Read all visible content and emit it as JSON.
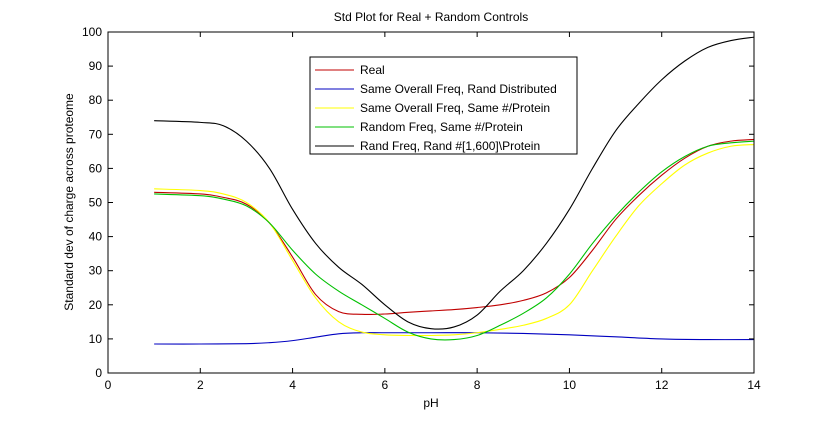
{
  "chart_data": {
    "type": "line",
    "title": "Std Plot for Real + Random Controls",
    "xlabel": "pH",
    "ylabel": "Standard dev of charge across proteome",
    "xlim": [
      0,
      14
    ],
    "ylim": [
      0,
      100
    ],
    "xticks": [
      0,
      2,
      4,
      6,
      8,
      10,
      12,
      14
    ],
    "yticks": [
      0,
      10,
      20,
      30,
      40,
      50,
      60,
      70,
      80,
      90,
      100
    ],
    "grid": false,
    "legend_position": "top-center",
    "series": [
      {
        "name": "Real",
        "color": "#c00000",
        "x": [
          1,
          2,
          2.5,
          3,
          3.5,
          4,
          4.5,
          5,
          5.5,
          6,
          6.5,
          7,
          7.5,
          8,
          8.5,
          9,
          9.5,
          10,
          10.5,
          11,
          11.5,
          12,
          12.5,
          13,
          13.5,
          14
        ],
        "y": [
          53,
          52.5,
          51.5,
          49.5,
          44,
          34,
          23,
          18,
          17.2,
          17.3,
          17.8,
          18.2,
          18.6,
          19.2,
          20,
          21.3,
          23.5,
          28,
          36,
          45,
          52,
          58,
          63,
          66.5,
          68,
          68.5
        ]
      },
      {
        "name": "Same Overall Freq, Rand Distributed",
        "color": "#0000c0",
        "x": [
          1,
          2,
          3,
          3.5,
          4,
          4.5,
          5,
          5.5,
          6,
          7,
          8,
          9,
          10,
          11,
          12,
          13,
          14
        ],
        "y": [
          8.5,
          8.5,
          8.6,
          8.9,
          9.5,
          10.5,
          11.5,
          11.8,
          11.8,
          11.8,
          11.8,
          11.6,
          11.2,
          10.6,
          10,
          9.8,
          9.8
        ]
      },
      {
        "name": "Same Overall Freq, Same #/Protein",
        "color": "#ffff00",
        "x": [
          1,
          2,
          2.5,
          3,
          3.5,
          4,
          4.5,
          5,
          5.5,
          6,
          6.5,
          7,
          7.5,
          8,
          8.5,
          9,
          9.5,
          10,
          10.5,
          11,
          11.5,
          12,
          12.5,
          13,
          13.5,
          14
        ],
        "y": [
          54,
          53.5,
          52.5,
          50,
          44,
          33,
          22,
          15,
          12,
          11.2,
          11,
          11,
          11.2,
          11.8,
          12.8,
          14,
          16,
          20,
          30,
          40,
          49,
          55.5,
          61,
          64.5,
          66.5,
          67
        ]
      },
      {
        "name": "Random Freq, Same #/Protein",
        "color": "#00c000",
        "x": [
          1,
          2,
          2.5,
          3,
          3.5,
          4,
          4.5,
          5,
          5.5,
          6,
          6.5,
          7,
          7.5,
          8,
          8.5,
          9,
          9.5,
          10,
          10.5,
          11,
          11.5,
          12,
          12.5,
          13,
          13.5,
          14
        ],
        "y": [
          52.5,
          52,
          51,
          49,
          44,
          36,
          29,
          24,
          20,
          16,
          12,
          10,
          9.8,
          11,
          14,
          17.5,
          22,
          29,
          38,
          46,
          53,
          59,
          63.5,
          66.5,
          67.5,
          68
        ]
      },
      {
        "name": "Rand Freq, Rand #[1,600]\\Protein",
        "color": "#000000",
        "x": [
          1,
          2,
          2.5,
          3,
          3.5,
          4,
          4.5,
          5,
          5.5,
          6,
          6.5,
          7,
          7.5,
          8,
          8.5,
          9,
          9.5,
          10,
          10.5,
          11,
          11.5,
          12,
          12.5,
          13,
          13.5,
          14
        ],
        "y": [
          74,
          73.5,
          72.5,
          68,
          60,
          48,
          38,
          31,
          26,
          20,
          15,
          13,
          13.5,
          17,
          24,
          30,
          38,
          48,
          60,
          71,
          79,
          86,
          91.5,
          95.5,
          97.5,
          98.5
        ]
      }
    ]
  }
}
